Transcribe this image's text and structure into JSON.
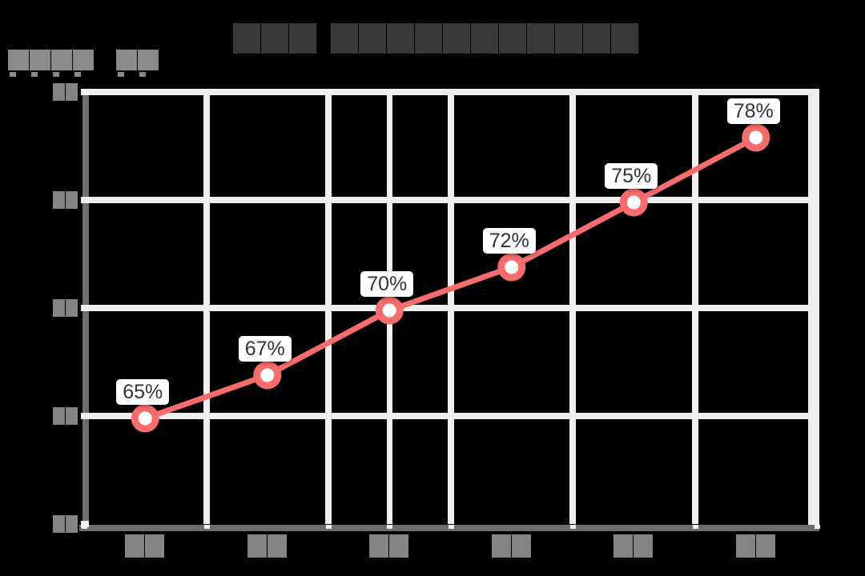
{
  "page": {
    "background": "#000000"
  },
  "title": {
    "illegible": true,
    "note": "CJK title rendered as dark glyph blocks",
    "glyph_runs": [
      3,
      11
    ],
    "color": "#383838"
  },
  "y_axis_name": {
    "illegible": true,
    "note": "axis-name glyph blocks with small descender marks",
    "glyph_runs": [
      4,
      2
    ],
    "color": "#8a8a8a"
  },
  "chart_data": {
    "type": "line",
    "title": "(illegible glyph blocks)",
    "xlabel": "(illegible glyph blocks)",
    "ylabel": "(illegible glyph blocks)",
    "categories_count": 6,
    "categories_illegible": true,
    "category_glyphs_per_label": 2,
    "values": [
      65,
      67,
      70,
      72,
      75,
      78
    ],
    "point_labels": [
      "65%",
      "67%",
      "70%",
      "72%",
      "75%",
      "78%"
    ],
    "ylim": [
      60,
      80
    ],
    "y_tick_values": [
      60,
      65,
      70,
      75,
      80
    ],
    "y_tick_labels_illegible": true,
    "grid": true,
    "legend": false,
    "axis_pointer_category_index": 2,
    "line_color": "#f86c6c",
    "marker": {
      "fill": "#ffffff",
      "ring_color": "#f86c6c"
    }
  },
  "colors": {
    "grid_line": "#efefef",
    "axis_line": "#6d6d6d",
    "tick_block": "#848484",
    "data_label_text": "#333333",
    "data_label_bg": "#ffffff"
  }
}
